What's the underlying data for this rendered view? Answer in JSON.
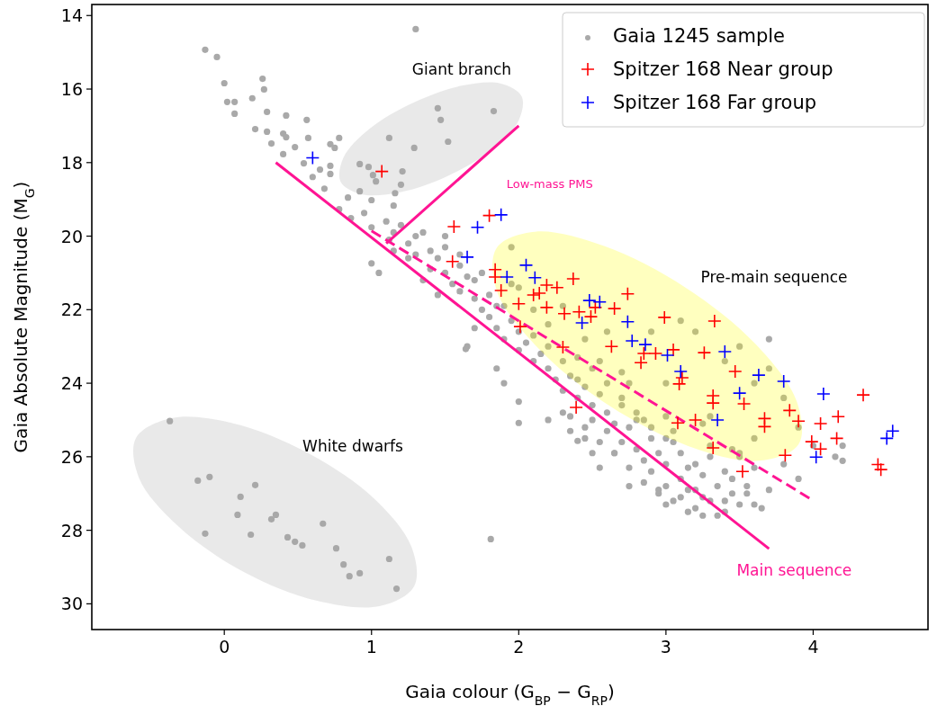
{
  "chart_data": {
    "type": "scatter",
    "xlabel": "Gaia colour (G$_{BP}$ − G$_{RP}$)",
    "ylabel": "Gaia Absolute Magnitude (M$_{G}$)",
    "xlim": [
      -0.9,
      4.78
    ],
    "ylim": [
      30.7,
      13.7
    ],
    "xticks": [
      0,
      1,
      2,
      3,
      4
    ],
    "yticks": [
      14,
      16,
      18,
      20,
      22,
      24,
      26,
      28,
      30
    ],
    "grid": false,
    "legend": "top right",
    "annotations": [
      "Giant branch",
      "Pre-main sequence",
      "White dwarfs"
    ],
    "series": [
      {
        "name": "Gaia 1245 sample",
        "marker": "circle",
        "color": "#a9a9a9",
        "x": [
          -0.13,
          -0.05,
          0.0,
          0.02,
          0.07,
          0.07,
          0.26,
          0.27,
          0.19,
          0.29,
          0.42,
          0.56,
          0.21,
          0.29,
          0.4,
          0.42,
          0.57,
          0.32,
          0.48,
          0.4,
          0.78,
          0.72,
          0.75,
          0.54,
          0.65,
          0.72,
          0.72,
          0.6,
          1.12,
          0.92,
          0.98,
          1.01,
          1.03,
          1.21,
          1.16,
          1.15,
          0.95,
          0.84,
          1.0,
          0.92,
          0.68,
          0.78,
          0.86,
          1.0,
          1.0,
          1.12,
          1.3,
          1.47,
          1.52,
          1.29,
          1.83,
          1.45,
          1.1,
          1.15,
          1.2,
          1.25,
          1.3,
          1.3,
          1.35,
          1.4,
          1.4,
          1.45,
          1.5,
          1.5,
          1.55,
          1.6,
          1.6,
          1.65,
          1.7,
          1.7,
          1.75,
          1.8,
          1.8,
          1.85,
          1.9,
          1.9,
          1.95,
          2.0,
          2.0,
          2.05,
          2.1,
          2.1,
          2.15,
          2.2,
          2.2,
          2.25,
          2.3,
          2.3,
          2.35,
          2.4,
          2.4,
          2.45,
          2.5,
          2.5,
          2.55,
          2.6,
          2.6,
          2.65,
          2.7,
          2.7,
          2.75,
          2.8,
          2.8,
          2.85,
          2.9,
          2.9,
          2.95,
          3.0,
          3.0,
          3.05,
          3.1,
          3.1,
          3.15,
          3.2,
          3.2,
          3.25,
          3.3,
          3.35,
          3.4,
          3.45,
          3.5,
          3.55,
          3.6,
          3.0,
          3.25,
          2.5,
          2.35,
          2.2,
          2.0,
          1.9,
          1.85,
          1.65,
          1.7,
          2.55,
          2.75,
          3.0,
          3.3,
          3.6,
          3.9,
          4.15,
          1.2,
          1.05,
          1.81,
          2.4,
          2.0,
          1.64,
          4.2,
          2.3,
          2.6,
          2.9,
          3.1,
          3.2,
          3.4,
          3.5,
          3.6,
          3.7,
          3.8,
          3.9,
          3.6,
          3.3,
          3.0,
          2.7,
          2.45,
          2.0,
          1.95,
          1.85,
          3.7,
          4.0,
          3.5,
          4.2,
          -0.37,
          -0.18,
          -0.1,
          0.21,
          0.11,
          0.09,
          -0.13,
          0.18,
          0.32,
          0.35,
          0.43,
          0.48,
          0.53,
          0.67,
          0.76,
          0.81,
          0.85,
          0.92,
          1.12,
          1.17,
          2.3,
          2.45,
          2.55,
          2.65,
          2.75,
          2.85,
          2.95,
          3.05,
          3.15,
          3.25,
          3.35,
          3.45,
          3.55,
          3.65,
          2.6,
          2.7,
          2.8,
          2.9,
          3.0,
          3.1,
          3.2,
          3.3,
          3.4,
          2.4,
          2.5,
          2.2,
          2.1,
          1.95,
          1.75,
          1.6,
          1.5,
          1.45,
          1.35,
          1.25,
          1.15,
          2.85,
          3.05,
          3.25,
          3.45,
          3.15,
          2.95,
          2.75,
          2.55,
          2.35,
          3.5,
          3.7,
          3.8,
          3.4,
          2.65,
          2.45
        ],
        "values": [
          14.93,
          15.13,
          15.84,
          16.35,
          16.35,
          16.67,
          15.72,
          16.01,
          16.25,
          16.62,
          16.72,
          16.84,
          17.09,
          17.16,
          17.21,
          17.31,
          17.33,
          17.48,
          17.58,
          17.77,
          17.33,
          17.5,
          17.6,
          18.02,
          18.19,
          18.09,
          18.31,
          18.39,
          17.33,
          18.04,
          18.12,
          18.34,
          18.51,
          18.24,
          18.83,
          19.17,
          19.37,
          18.95,
          19.02,
          18.78,
          18.71,
          19.27,
          19.51,
          19.76,
          20.74,
          20.1,
          14.37,
          16.84,
          17.43,
          17.6,
          16.6,
          16.52,
          19.6,
          19.9,
          19.7,
          20.2,
          20.0,
          20.5,
          19.9,
          20.4,
          20.9,
          20.6,
          21.0,
          20.3,
          21.3,
          20.8,
          21.5,
          21.1,
          21.7,
          21.2,
          22.0,
          21.6,
          22.2,
          22.5,
          21.9,
          22.8,
          22.3,
          22.6,
          23.1,
          22.9,
          23.4,
          22.7,
          23.2,
          23.6,
          23.0,
          23.9,
          23.4,
          24.2,
          23.8,
          24.4,
          23.9,
          24.1,
          24.6,
          25.0,
          24.3,
          24.8,
          25.3,
          25.1,
          24.6,
          25.6,
          25.2,
          25.8,
          25.0,
          26.1,
          25.5,
          26.4,
          25.9,
          26.2,
          26.8,
          25.6,
          26.6,
          27.1,
          26.3,
          26.9,
          27.4,
          26.5,
          27.2,
          26.8,
          27.5,
          27.0,
          27.3,
          26.8,
          27.3,
          27.3,
          27.6,
          25.9,
          25.3,
          25.0,
          24.5,
          24.0,
          23.6,
          23.0,
          22.5,
          23.4,
          24.0,
          24.9,
          25.7,
          26.3,
          26.6,
          26.0,
          18.6,
          21.0,
          28.24,
          25.57,
          25.08,
          23.07,
          26.11,
          21.9,
          22.6,
          22.6,
          22.3,
          22.6,
          23.4,
          23.0,
          24.0,
          23.6,
          24.4,
          25.2,
          25.5,
          24.9,
          24.0,
          23.7,
          22.8,
          21.4,
          20.3,
          21.9,
          22.8,
          25.7,
          25.9,
          25.7,
          25.03,
          26.65,
          26.55,
          26.77,
          27.09,
          27.58,
          28.09,
          28.12,
          27.7,
          27.58,
          28.19,
          28.31,
          28.41,
          27.82,
          28.49,
          28.93,
          29.25,
          29.17,
          28.78,
          29.59,
          24.8,
          25.2,
          25.6,
          25.9,
          26.3,
          26.7,
          27.0,
          27.2,
          27.5,
          27.1,
          27.6,
          26.6,
          27.0,
          27.4,
          24.0,
          24.4,
          24.8,
          25.2,
          25.5,
          25.9,
          26.2,
          26.0,
          26.4,
          23.3,
          23.6,
          22.4,
          22.0,
          21.3,
          21.0,
          20.5,
          20.0,
          21.6,
          21.2,
          20.6,
          20.4,
          25.0,
          25.3,
          25.1,
          25.8,
          26.9,
          26.9,
          26.8,
          26.3,
          24.9,
          26.0,
          26.9,
          26.2,
          27.2,
          25.9,
          25.5
        ]
      },
      {
        "type": "area",
        "color": "#a9a9a9",
        "x": [
          1.29,
          1.06,
          0.63,
          0.13,
          -0.31,
          -0.58,
          -0.6,
          -0.36,
          0.06,
          0.56,
          1.01,
          1.27
        ],
        "values": [
          29.52,
          30.06,
          29.92,
          29.13,
          27.9,
          26.57,
          25.49,
          24.95,
          25.09,
          25.88,
          27.11,
          28.44
        ]
      },
      {
        "type": "area",
        "color": "#a9a9a9",
        "x": [
          2.02,
          2.0,
          1.82,
          1.52,
          1.2,
          0.93,
          0.79,
          0.81,
          0.99,
          1.29,
          1.61,
          1.88
        ],
        "values": [
          16.2,
          16.85,
          17.64,
          18.36,
          18.8,
          18.86,
          18.52,
          17.86,
          17.07,
          16.36,
          15.91,
          15.85
        ]
      },
      {
        "type": "area",
        "color": "#ffff00",
        "x": [
          3.9,
          3.63,
          3.16,
          2.61,
          2.13,
          1.85,
          1.85,
          2.11,
          2.58,
          3.13,
          3.61,
          3.89
        ],
        "values": [
          25.67,
          26.11,
          25.72,
          24.6,
          23.04,
          21.48,
          20.32,
          19.88,
          20.27,
          21.39,
          22.94,
          24.51
        ]
      },
      {
        "type": "line",
        "name": "Main sequence",
        "color": "#ff1493",
        "line_style": "solid",
        "marker": "none",
        "x": [
          0.35,
          3.7
        ],
        "values": [
          18.0,
          28.5
        ]
      },
      {
        "type": "line",
        "name": "Low-mass PMS",
        "color": "#ff1493",
        "line_style": "dashed",
        "marker": "none",
        "x": [
          1.0,
          4.0
        ],
        "values": [
          19.86,
          27.19
        ]
      },
      {
        "type": "line",
        "color": "#ff1493",
        "line_style": "solid",
        "marker": "none",
        "x": [
          1.1,
          2.0
        ],
        "values": [
          20.2,
          17.0
        ]
      },
      {
        "name": "Spitzer 168 Near group",
        "marker": "cross",
        "color": "#ff0000",
        "x": [
          1.07,
          1.56,
          1.8,
          1.55,
          1.84,
          1.84,
          1.88,
          2.0,
          2.01,
          2.1,
          2.14,
          2.19,
          2.26,
          2.37,
          2.19,
          2.31,
          2.41,
          2.49,
          2.52,
          2.65,
          2.3,
          2.63,
          2.39,
          2.74,
          2.99,
          3.33,
          2.85,
          2.83,
          2.93,
          3.05,
          3.26,
          3.47,
          3.09,
          3.32,
          3.32,
          3.08,
          3.2,
          3.32,
          3.11,
          3.53,
          3.84,
          3.9,
          3.67,
          3.67,
          4.05,
          4.17,
          4.16,
          3.99,
          4.05,
          3.81,
          3.52,
          4.34,
          4.44,
          4.46
        ],
        "values": [
          18.24,
          19.74,
          19.44,
          20.69,
          20.91,
          21.11,
          21.48,
          21.84,
          22.46,
          21.6,
          21.55,
          21.33,
          21.4,
          21.16,
          21.94,
          22.11,
          22.06,
          22.19,
          21.94,
          21.97,
          23.02,
          23.0,
          24.66,
          21.57,
          22.21,
          22.31,
          23.19,
          23.44,
          23.19,
          23.09,
          23.17,
          23.68,
          24.02,
          24.34,
          24.54,
          25.08,
          25.0,
          25.76,
          23.85,
          24.56,
          24.74,
          25.03,
          24.96,
          25.18,
          25.1,
          24.91,
          25.5,
          25.59,
          25.79,
          25.96,
          26.4,
          24.32,
          26.21,
          26.35
        ]
      },
      {
        "name": "Spitzer 168 Far group",
        "marker": "cross",
        "color": "#0000ff",
        "x": [
          0.6,
          1.88,
          1.72,
          1.65,
          1.92,
          2.05,
          2.11,
          2.48,
          2.55,
          2.43,
          2.74,
          2.77,
          2.86,
          3.01,
          3.1,
          3.4,
          3.35,
          3.5,
          3.63,
          3.8,
          4.07,
          4.02,
          4.5,
          4.54
        ],
        "values": [
          17.87,
          19.42,
          19.76,
          20.57,
          21.11,
          20.79,
          21.13,
          21.75,
          21.79,
          22.36,
          22.33,
          22.85,
          22.95,
          23.24,
          23.68,
          23.14,
          25.0,
          24.27,
          23.78,
          23.95,
          24.29,
          26.01,
          25.5,
          25.3
        ]
      }
    ]
  }
}
